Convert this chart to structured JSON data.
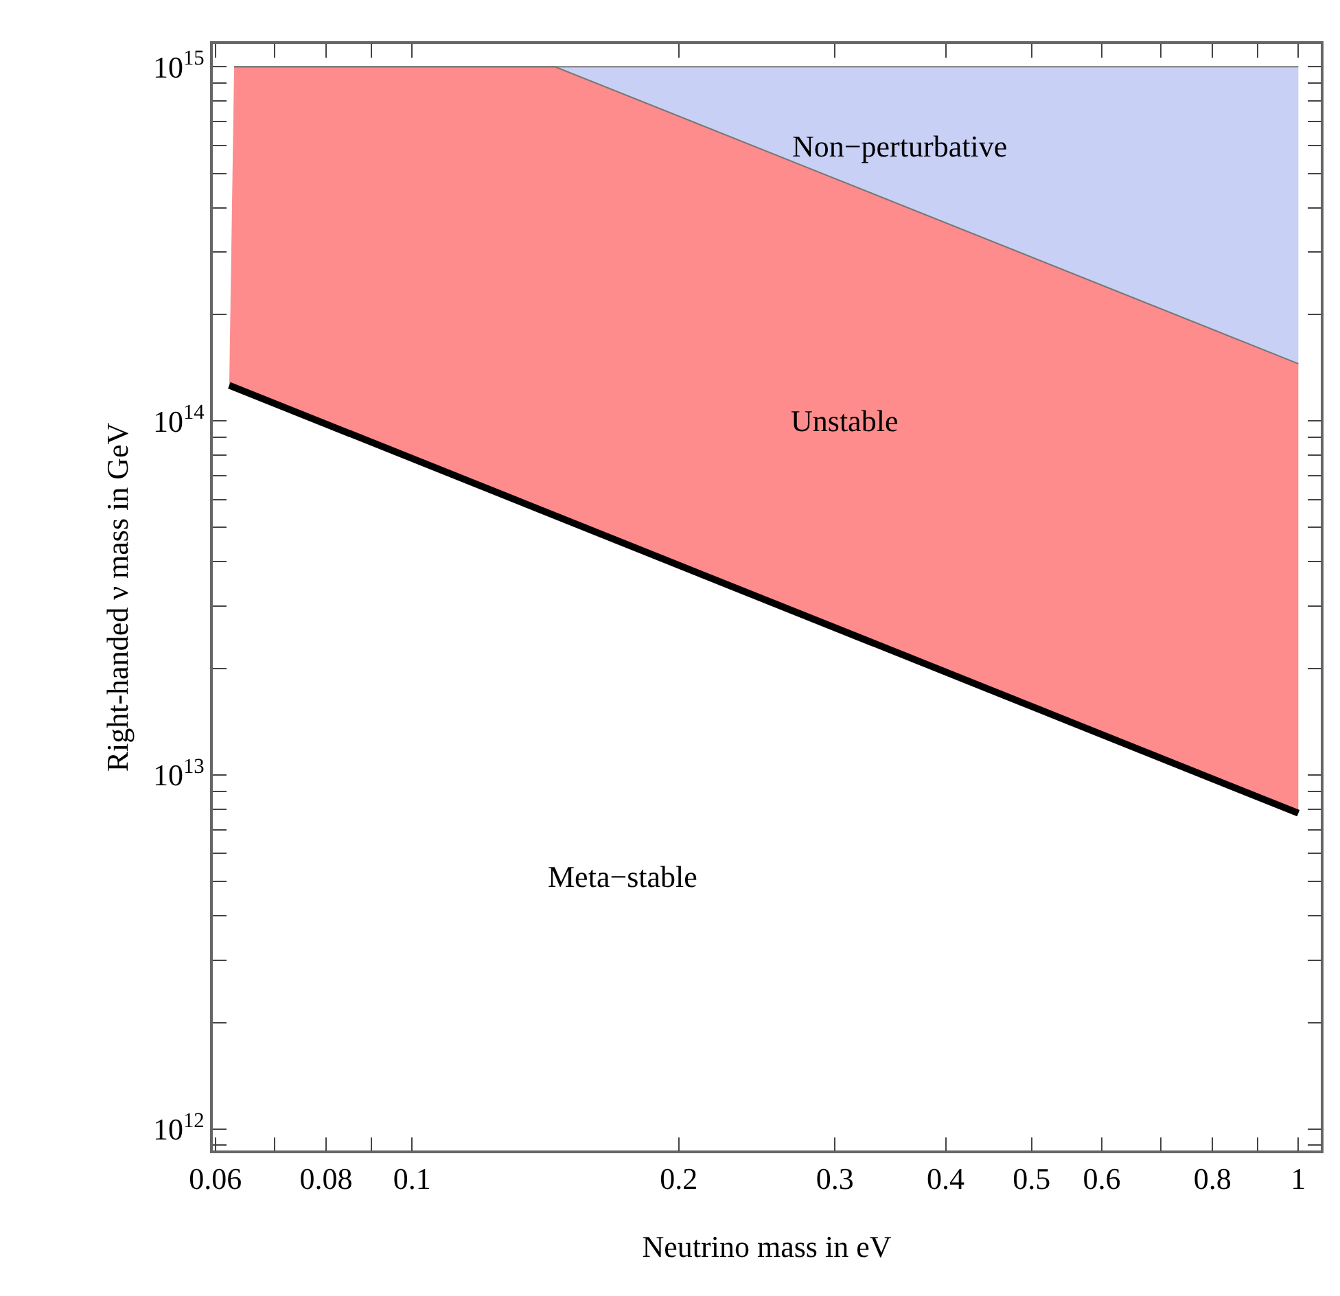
{
  "chart_data": {
    "type": "area",
    "xlabel": "Neutrino mass in eV",
    "ylabel": "Right-handed ν mass in GeV",
    "log": "xy",
    "xlim": [
      0.0596,
      1.06
    ],
    "ylim": [
      870000000000.0,
      1160000000000000.0
    ],
    "xticks": [
      0.06,
      {
        "value": 0.07,
        "label": null
      },
      0.08,
      {
        "value": 0.09,
        "label": null
      },
      0.1,
      0.2,
      0.3,
      0.4,
      0.5,
      0.6,
      {
        "value": 0.7,
        "label": null
      },
      0.8,
      {
        "value": 0.9,
        "label": null
      },
      1
    ],
    "yticks": [
      {
        "value": 900000000000.0,
        "label": null
      },
      {
        "value": 1000000000000.0,
        "label": "10$^{12}$"
      },
      {
        "value": 2000000000000.0,
        "label": null
      },
      {
        "value": 3000000000000.0,
        "label": null
      },
      {
        "value": 4000000000000.0,
        "label": null
      },
      {
        "value": 5000000000000.0,
        "label": null
      },
      {
        "value": 6000000000000.0,
        "label": null
      },
      {
        "value": 7000000000000.0,
        "label": null
      },
      {
        "value": 8000000000000.0,
        "label": null
      },
      {
        "value": 9000000000000.0,
        "label": null
      },
      {
        "value": 10000000000000.0,
        "label": "10$^{13}$"
      },
      {
        "value": 20000000000000.0,
        "label": null
      },
      {
        "value": 30000000000000.0,
        "label": null
      },
      {
        "value": 40000000000000.0,
        "label": null
      },
      {
        "value": 50000000000000.0,
        "label": null
      },
      {
        "value": 60000000000000.0,
        "label": null
      },
      {
        "value": 70000000000000.0,
        "label": null
      },
      {
        "value": 80000000000000.0,
        "label": null
      },
      {
        "value": 90000000000000.0,
        "label": null
      },
      {
        "value": 100000000000000.0,
        "label": "10$^{14}$"
      },
      {
        "value": 200000000000000.0,
        "label": null
      },
      {
        "value": 300000000000000.0,
        "label": null
      },
      {
        "value": 400000000000000.0,
        "label": null
      },
      {
        "value": 500000000000000.0,
        "label": null
      },
      {
        "value": 600000000000000.0,
        "label": null
      },
      {
        "value": 700000000000000.0,
        "label": null
      },
      {
        "value": 800000000000000.0,
        "label": null
      },
      {
        "value": 900000000000000.0,
        "label": null
      },
      {
        "value": 1000000000000000.0,
        "label": "10$^{15}$"
      }
    ],
    "series": [
      {
        "type": "line",
        "color": "#000000",
        "x": [
          0.0622,
          1
        ],
        "values": [
          126000000000000.0,
          7800000000000.0
        ]
      },
      {
        "color": "#fe8c8c",
        "x": [
          0.063,
          0.145,
          1
        ],
        "values": [
          1000000000000000.0,
          1000000000000000.0,
          145000000000000.0
        ]
      },
      {
        "color": "#c9d0f5",
        "x": [
          0.063,
          0.145,
          1
        ],
        "values": [
          1000000000000000.0,
          1000000000000000.0,
          1000000000000000.0
        ]
      }
    ],
    "annotations": [
      "Non−perturbative",
      "Unstable",
      "Meta−stable"
    ]
  }
}
